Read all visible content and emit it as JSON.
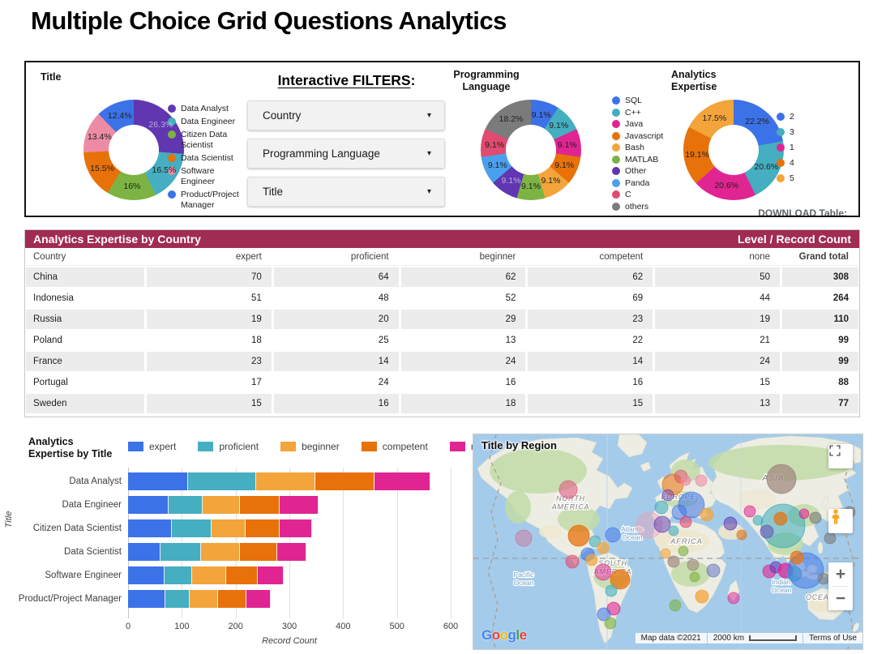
{
  "page_title": "Multiple Choice Grid Questions Analytics",
  "top_panel": {
    "filters_heading": "Interactive FILTERS",
    "filters_colon": ":",
    "dropdowns": [
      {
        "label": "Country"
      },
      {
        "label": "Programming Language"
      },
      {
        "label": "Title"
      }
    ],
    "download_label": "DOWNLOAD Table:"
  },
  "chart_data": [
    {
      "type": "pie",
      "title": "Title",
      "hole": 0.5,
      "legend_position": "right",
      "slices": [
        {
          "label": "Data Analyst",
          "value": 26.3,
          "text": "26.3%",
          "color": "#6036B1",
          "light": true
        },
        {
          "label": "Data Engineer",
          "value": 16.5,
          "text": "16.5%",
          "color": "#45AEC0"
        },
        {
          "label": "Citizen Data Scientist",
          "value": 16.0,
          "text": "16%",
          "color": "#7CB342"
        },
        {
          "label": "Data Scientist",
          "value": 15.5,
          "text": "15.5%",
          "color": "#E8710A"
        },
        {
          "label": "Software Engineer",
          "value": 13.4,
          "text": "13.4%",
          "color": "#EE8BA4"
        },
        {
          "label": "Product/Project Manager",
          "value": 12.4,
          "text": "12.4%",
          "color": "#3B72E8"
        }
      ]
    },
    {
      "type": "pie",
      "title": "Programming Language",
      "hole": 0.5,
      "legend_position": "right",
      "slices": [
        {
          "label": "SQL",
          "value": 9.1,
          "text": "9.1%",
          "color": "#3B72E8"
        },
        {
          "label": "C++",
          "value": 9.1,
          "text": "9.1%",
          "color": "#45AEC0"
        },
        {
          "label": "Java",
          "value": 9.1,
          "text": "9.1%",
          "color": "#E02592"
        },
        {
          "label": "Javascript",
          "value": 9.1,
          "text": "9.1%",
          "color": "#E8710A"
        },
        {
          "label": "Bash",
          "value": 9.1,
          "text": "9.1%",
          "color": "#F3A43B"
        },
        {
          "label": "MATLAB",
          "value": 9.1,
          "text": "9.1%",
          "color": "#7CB342"
        },
        {
          "label": "Other",
          "value": 9.1,
          "text": "9.1%",
          "color": "#6036B1",
          "light": true
        },
        {
          "label": "Panda",
          "value": 9.1,
          "text": "9.1%",
          "color": "#4BA0EE"
        },
        {
          "label": "C",
          "value": 9.1,
          "text": "9.1%",
          "color": "#E14B6F"
        },
        {
          "label": "others",
          "value": 18.2,
          "text": "18.2%",
          "color": "#7B7B7B"
        }
      ]
    },
    {
      "type": "pie",
      "title": "Analytics Expertise",
      "hole": 0.5,
      "legend_position": "right",
      "slices": [
        {
          "label": "2",
          "value": 22.2,
          "text": "22.2%",
          "color": "#3B72E8"
        },
        {
          "label": "3",
          "value": 20.6,
          "text": "20.6%",
          "color": "#45AEC0"
        },
        {
          "label": "1",
          "value": 20.6,
          "text": "20.6%",
          "color": "#E02592"
        },
        {
          "label": "4",
          "value": 19.1,
          "text": "19.1%",
          "color": "#E8710A"
        },
        {
          "label": "5",
          "value": 17.5,
          "text": "17.5%",
          "color": "#F3A43B"
        }
      ]
    },
    {
      "type": "table",
      "title": "Analytics Expertise by Country",
      "right_title": "Level / Record Count",
      "columns": [
        "Country",
        "expert",
        "proficient",
        "beginner",
        "competent",
        "none",
        "Grand total"
      ],
      "rows": [
        [
          "China",
          70,
          64,
          62,
          62,
          50,
          308
        ],
        [
          "Indonesia",
          51,
          48,
          52,
          69,
          44,
          264
        ],
        [
          "Russia",
          19,
          20,
          29,
          23,
          19,
          110
        ],
        [
          "Poland",
          18,
          25,
          13,
          22,
          21,
          99
        ],
        [
          "France",
          23,
          14,
          24,
          14,
          24,
          99
        ],
        [
          "Portugal",
          17,
          24,
          16,
          16,
          15,
          88
        ],
        [
          "Sweden",
          15,
          16,
          18,
          15,
          13,
          77
        ]
      ]
    },
    {
      "type": "bar",
      "title": "Analytics Expertise by Title",
      "orientation": "horizontal",
      "xlabel": "Record Count",
      "ylabel": "Title",
      "xlim": [
        0,
        600
      ],
      "xticks": [
        0,
        100,
        200,
        300,
        400,
        500,
        600
      ],
      "grid": true,
      "legend_position": "top",
      "categories": [
        "Data Analyst",
        "Data Engineer",
        "Citizen Data Scientist",
        "Data Scientist",
        "Software Engineer",
        "Product/Project Manager"
      ],
      "series": [
        {
          "name": "expert",
          "color": "#3B72E8",
          "values": [
            112,
            76,
            81,
            60,
            68,
            69
          ]
        },
        {
          "name": "proficient",
          "color": "#45AEC0",
          "values": [
            126,
            62,
            74,
            75,
            51,
            45
          ]
        },
        {
          "name": "beginner",
          "color": "#F3A43B",
          "values": [
            111,
            70,
            63,
            73,
            63,
            53
          ]
        },
        {
          "name": "competent",
          "color": "#E8710A",
          "values": [
            109,
            74,
            64,
            69,
            59,
            53
          ]
        },
        {
          "name": "none",
          "color": "#E02592",
          "values": [
            104,
            72,
            60,
            55,
            49,
            45
          ]
        }
      ]
    },
    {
      "type": "map",
      "title": "Title by Region",
      "labels": [
        {
          "lines": [
            "NORTH",
            "AMERICA"
          ],
          "x": 120,
          "y": 82,
          "cls": "land",
          "size": 9
        },
        {
          "lines": [
            "SOUTH",
            "AMERICA"
          ],
          "x": 172,
          "y": 162,
          "cls": "land",
          "size": 9
        },
        {
          "lines": [
            "EUROPE"
          ],
          "x": 253,
          "y": 80,
          "cls": "land",
          "size": 9
        },
        {
          "lines": [
            "ASIA"
          ],
          "x": 370,
          "y": 57,
          "cls": "land",
          "size": 10.5
        },
        {
          "lines": [
            "AFRICA"
          ],
          "x": 263,
          "y": 135,
          "cls": "land",
          "size": 9.5
        },
        {
          "lines": [
            "OCEANIA"
          ],
          "x": 433,
          "y": 204,
          "cls": "land",
          "size": 9
        },
        {
          "lines": [
            "Atlantic",
            "Ocean"
          ],
          "x": 196,
          "y": 120,
          "cls": "ocean",
          "size": 8.5
        },
        {
          "lines": [
            "Pacific",
            "Ocean"
          ],
          "x": 62,
          "y": 176,
          "cls": "ocean",
          "size": 8.5
        },
        {
          "lines": [
            "Indian",
            "Ocean"
          ],
          "x": 380,
          "y": 185,
          "cls": "ocean",
          "size": 8.5
        }
      ],
      "bubbles": [
        [
          117,
          68,
          11,
          "#E0527E",
          0.55
        ],
        [
          130,
          125,
          13,
          "#E8710A",
          0.75
        ],
        [
          122,
          157,
          8,
          "#E14B6F",
          0.6
        ],
        [
          150,
          132,
          7,
          "#45AEC0",
          0.6
        ],
        [
          141,
          148,
          8,
          "#3B72E8",
          0.55
        ],
        [
          160,
          140,
          7,
          "#F3A43B",
          0.7
        ],
        [
          172,
          124,
          9,
          "#3B72E8",
          0.5
        ],
        [
          160,
          170,
          10,
          "#E02592",
          0.5
        ],
        [
          181,
          179,
          12,
          "#E8710A",
          0.75
        ],
        [
          170,
          193,
          7,
          "#45AEC0",
          0.6
        ],
        [
          173,
          215,
          8,
          "#E02592",
          0.6
        ],
        [
          161,
          222,
          8,
          "#3B72E8",
          0.55
        ],
        [
          169,
          233,
          7,
          "#7CB342",
          0.65
        ],
        [
          146,
          155,
          7,
          "#F3A43B",
          0.7
        ],
        [
          246,
          62,
          13,
          "#E8710A",
          0.55
        ],
        [
          256,
          52,
          8,
          "#E14B6F",
          0.5
        ],
        [
          269,
          87,
          16,
          "#3B72E8",
          0.55
        ],
        [
          262,
          57,
          6,
          "#EE8BA4",
          0.7
        ],
        [
          281,
          57,
          7,
          "#EE8BA4",
          0.6
        ],
        [
          232,
          90,
          8,
          "#45AEC0",
          0.6
        ],
        [
          217,
          112,
          16,
          "#E8A0B8",
          0.45
        ],
        [
          233,
          111,
          10,
          "#6036B1",
          0.5
        ],
        [
          254,
          96,
          9,
          "#3B72E8",
          0.5
        ],
        [
          262,
          108,
          7,
          "#E14B6F",
          0.6
        ],
        [
          288,
          99,
          8,
          "#F3A43B",
          0.7
        ],
        [
          247,
          119,
          6,
          "#45AEC0",
          0.6
        ],
        [
          240,
          75,
          7,
          "#6036B1",
          0.45
        ],
        [
          247,
          157,
          7,
          "#A1887F",
          0.7
        ],
        [
          271,
          161,
          7,
          "#A1887F",
          0.6
        ],
        [
          296,
          168,
          8,
          "#5C6BC0",
          0.5
        ],
        [
          282,
          200,
          8,
          "#F3A43B",
          0.75
        ],
        [
          321,
          202,
          7,
          "#E02592",
          0.5
        ],
        [
          259,
          144,
          6,
          "#7CB342",
          0.6
        ],
        [
          273,
          176,
          6,
          "#7CB342",
          0.6
        ],
        [
          237,
          147,
          6,
          "#F3A43B",
          0.6
        ],
        [
          249,
          211,
          7,
          "#7CB342",
          0.6
        ],
        [
          317,
          110,
          8,
          "#6036B1",
          0.55
        ],
        [
          341,
          95,
          7,
          "#E02592",
          0.55
        ],
        [
          351,
          106,
          6,
          "#45AEC0",
          0.6
        ],
        [
          331,
          124,
          6,
          "#E8710A",
          0.6
        ],
        [
          380,
          55,
          18,
          "#A1887F",
          0.75
        ],
        [
          382,
          113,
          27,
          "#2AA5B8",
          0.5
        ],
        [
          379,
          104,
          8,
          "#E8710A",
          0.7
        ],
        [
          362,
          120,
          8,
          "#6036B1",
          0.45
        ],
        [
          365,
          169,
          8,
          "#E02592",
          0.6
        ],
        [
          373,
          164,
          7,
          "#6036B1",
          0.55
        ],
        [
          385,
          168,
          9,
          "#E02592",
          0.75
        ],
        [
          396,
          172,
          9,
          "#45AEC0",
          0.65
        ],
        [
          410,
          168,
          22,
          "#3B72E8",
          0.5
        ],
        [
          399,
          152,
          8,
          "#E8710A",
          0.7
        ],
        [
          422,
          103,
          7,
          "#7B7B7B",
          0.6
        ],
        [
          440,
          128,
          7,
          "#7B7B7B",
          0.6
        ],
        [
          464,
          96,
          7,
          "#7B7B7B",
          0.6
        ],
        [
          432,
          178,
          7,
          "#7B7B7B",
          0.6
        ],
        [
          408,
          98,
          6,
          "#E02592",
          0.6
        ],
        [
          62,
          128,
          10,
          "#E0527E",
          0.35
        ]
      ],
      "attribution": {
        "map_data": "Map data ©2021",
        "scale": "2000 km",
        "terms": "Terms of Use"
      },
      "logo_text": "Google",
      "logo_colors": [
        "#4285F4",
        "#EA4335",
        "#FBBC05",
        "#4285F4",
        "#34A853",
        "#EA4335"
      ],
      "controls": {
        "zoom_in": "+",
        "zoom_out": "−"
      }
    }
  ]
}
